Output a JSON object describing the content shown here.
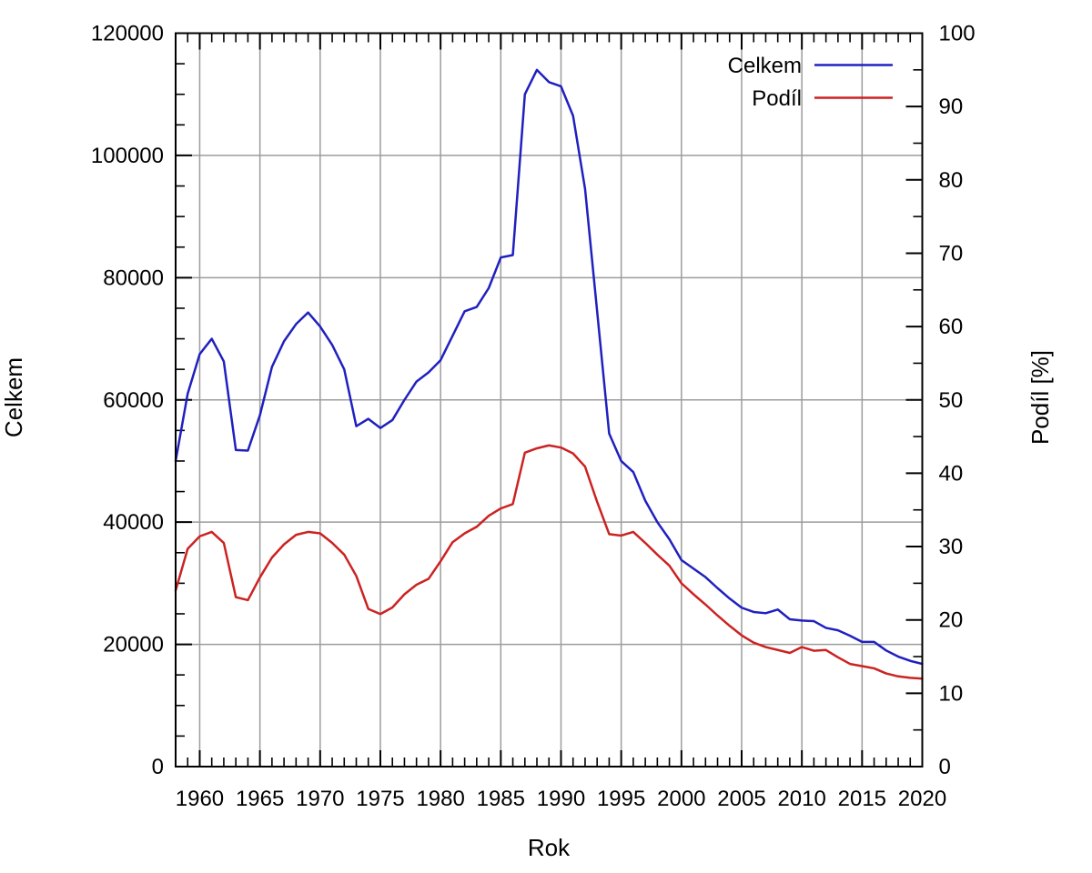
{
  "chart_data": {
    "type": "line",
    "title": "",
    "xlabel": "Rok",
    "ylabel_left": "Celkem",
    "ylabel_right": "Podíl [%]",
    "grid": true,
    "legend_position": "top-right-inside",
    "x_range": [
      1958,
      2020
    ],
    "x_major_step": 5,
    "x_minor_step": 1,
    "x_tick_labels": [
      "1960",
      "1965",
      "1970",
      "1975",
      "1980",
      "1985",
      "1990",
      "1995",
      "2000",
      "2005",
      "2010",
      "2015",
      "2020"
    ],
    "y_left_range": [
      0,
      120000
    ],
    "y_left_major_step": 20000,
    "y_left_minor_step": 5000,
    "y_left_tick_labels": [
      "0",
      "20000",
      "40000",
      "60000",
      "80000",
      "100000",
      "120000"
    ],
    "y_right_range": [
      0,
      100
    ],
    "y_right_major_step": 10,
    "y_right_minor_step": 5,
    "y_right_tick_labels": [
      "0",
      "10",
      "20",
      "30",
      "40",
      "50",
      "60",
      "70",
      "80",
      "90",
      "100"
    ],
    "x": [
      1958,
      1959,
      1960,
      1961,
      1962,
      1963,
      1964,
      1965,
      1966,
      1967,
      1968,
      1969,
      1970,
      1971,
      1972,
      1973,
      1974,
      1975,
      1976,
      1977,
      1978,
      1979,
      1980,
      1981,
      1982,
      1983,
      1984,
      1985,
      1986,
      1987,
      1988,
      1989,
      1990,
      1991,
      1992,
      1993,
      1994,
      1995,
      1996,
      1997,
      1998,
      1999,
      2000,
      2001,
      2002,
      2003,
      2004,
      2005,
      2006,
      2007,
      2008,
      2009,
      2010,
      2011,
      2012,
      2013,
      2014,
      2015,
      2016,
      2017,
      2018,
      2019,
      2020
    ],
    "series": [
      {
        "name": "Celkem",
        "axis": "left",
        "color": "#2020c0",
        "values": [
          50000,
          61000,
          67500,
          70000,
          66300,
          51800,
          51700,
          57500,
          65400,
          69600,
          72400,
          74300,
          72000,
          69000,
          65000,
          55700,
          56900,
          55400,
          56700,
          60000,
          63000,
          64500,
          66500,
          70500,
          74500,
          75200,
          78300,
          83300,
          83700,
          110000,
          114000,
          112000,
          111300,
          106500,
          94500,
          74500,
          54500,
          50000,
          48200,
          43500,
          40000,
          37200,
          33800,
          32400,
          31000,
          29200,
          27500,
          26000,
          25300,
          25100,
          25700,
          24100,
          23900,
          23800,
          22700,
          22300,
          21400,
          20400,
          20400,
          19000,
          18000,
          17300,
          16800
        ]
      },
      {
        "name": "Podíl",
        "axis": "right",
        "color": "#cc2222",
        "values": [
          24.0,
          29.7,
          31.4,
          32.0,
          30.5,
          23.1,
          22.7,
          25.8,
          28.5,
          30.3,
          31.6,
          32.0,
          31.8,
          30.5,
          28.9,
          26.0,
          21.5,
          20.8,
          21.7,
          23.5,
          24.8,
          25.6,
          28.0,
          30.6,
          31.8,
          32.7,
          34.2,
          35.2,
          35.8,
          42.8,
          43.4,
          43.8,
          43.5,
          42.7,
          40.9,
          36.1,
          31.7,
          31.5,
          32.0,
          30.5,
          28.9,
          27.4,
          25.0,
          23.5,
          22.1,
          20.6,
          19.2,
          17.9,
          16.9,
          16.3,
          15.9,
          15.5,
          16.3,
          15.8,
          15.9,
          14.9,
          14.0,
          13.7,
          13.4,
          12.7,
          12.3,
          12.1,
          12.0
        ]
      }
    ]
  },
  "colors": {
    "background": "#ffffff",
    "grid": "#9c9c9c",
    "border": "#000000",
    "celkem_line": "#2020c0",
    "podil_line": "#cc2222"
  }
}
